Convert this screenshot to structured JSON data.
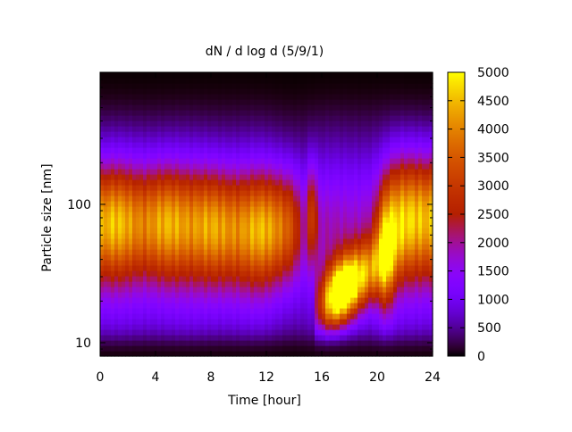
{
  "chart_data": {
    "type": "heatmap",
    "title": "dN / d log d (5/9/1)",
    "xlabel": "Time [hour]",
    "ylabel": "Particle size [nm]",
    "xlim": [
      0,
      24
    ],
    "x_ticks": [
      0,
      4,
      8,
      12,
      16,
      20,
      24
    ],
    "x_tick_labels": [
      "0",
      "4",
      "8",
      "12",
      "16",
      "20",
      "24"
    ],
    "y_scale": "log",
    "ylim": [
      8,
      900
    ],
    "y_ticks": [
      10,
      100
    ],
    "y_tick_labels": [
      "10",
      "100"
    ],
    "colorbar": {
      "range": [
        0,
        5000
      ],
      "ticks": [
        0,
        500,
        1000,
        1500,
        2000,
        2500,
        3000,
        3500,
        4000,
        4500,
        5000
      ],
      "tick_labels": [
        "0",
        "500",
        "1000",
        "1500",
        "2000",
        "2500",
        "3000",
        "3500",
        "4000",
        "4500",
        "5000"
      ],
      "colormap": "black-purple-red-orange-yellow"
    },
    "features": [
      {
        "t_range": [
          0,
          15
        ],
        "mode_center_nm": 70,
        "peak_value": 3000
      },
      {
        "t_range": [
          16,
          21
        ],
        "mode_center_nm": 22,
        "peak_value": 4500
      },
      {
        "t_range": [
          19.5,
          21.5
        ],
        "mode_center_nm": 45,
        "peak_value": 3900
      },
      {
        "t_range": [
          21,
          24
        ],
        "mode_center_nm": 80,
        "peak_value": 3000
      }
    ],
    "grid": false
  }
}
